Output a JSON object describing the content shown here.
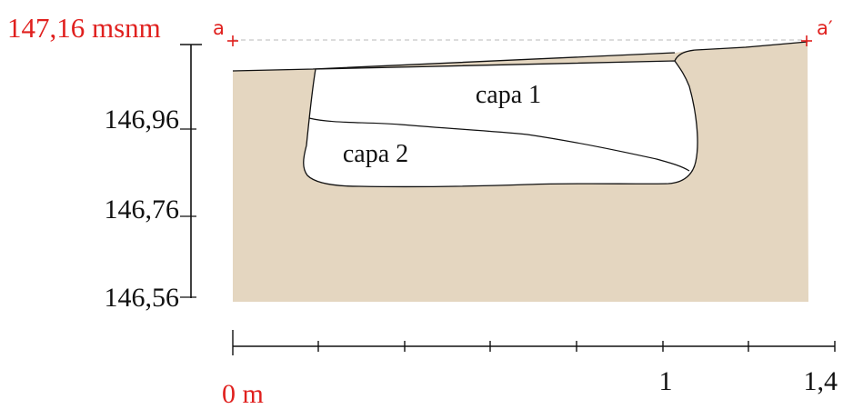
{
  "datum": {
    "label": "147,16 msnm"
  },
  "section_points": {
    "start": "a",
    "end": "a′"
  },
  "vertical_scale": {
    "tick_labels": [
      "146,96",
      "146,76",
      "146,56"
    ]
  },
  "layers": {
    "upper": "capa 1",
    "lower": "capa 2"
  },
  "horizontal_scale": {
    "start_label": "0 m",
    "mid_label": "1",
    "end_label": "1,4"
  },
  "colors": {
    "soil": "#e4d6c0",
    "accent": "#e0201e",
    "line": "#111111",
    "datum_line": "#c8c8c8"
  }
}
